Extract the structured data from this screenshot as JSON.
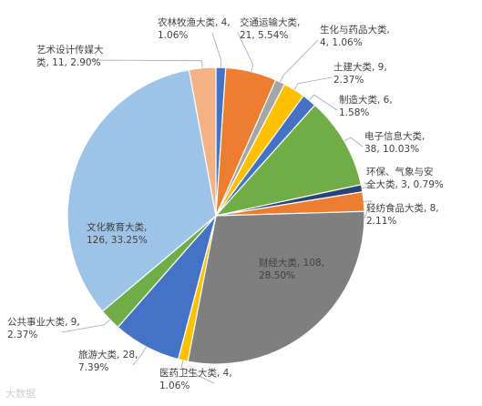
{
  "chart_data": {
    "type": "pie",
    "title": "",
    "slices": [
      {
        "name": "农林牧渔大类",
        "value": 4,
        "percent": "1.06%",
        "label_lines": [
          "农林牧渔大类, 4,",
          "1.06%"
        ],
        "color": "#4472c4"
      },
      {
        "name": "交通运输大类",
        "value": 21,
        "percent": "5.54%",
        "label_lines": [
          "交通运输大类,",
          "21, 5.54%"
        ],
        "color": "#ed7d31"
      },
      {
        "name": "生化与药品大类",
        "value": 4,
        "percent": "1.06%",
        "label_lines": [
          "生化与药品大类,",
          "4, 1.06%"
        ],
        "color": "#a5a5a5"
      },
      {
        "name": "土建大类",
        "value": 9,
        "percent": "2.37%",
        "label_lines": [
          "土建大类, 9,",
          "2.37%"
        ],
        "color": "#ffc000"
      },
      {
        "name": "制造大类",
        "value": 6,
        "percent": "1.58%",
        "label_lines": [
          "制造大类, 6,",
          "1.58%"
        ],
        "color": "#4472c4"
      },
      {
        "name": "电子信息大类",
        "value": 38,
        "percent": "10.03%",
        "label_lines": [
          "电子信息大类,",
          "38, 10.03%"
        ],
        "color": "#70ad47"
      },
      {
        "name": "环保、气象与安全大类",
        "value": 3,
        "percent": "0.79%",
        "label_lines": [
          "环保、气象与安",
          "全大类, 3, 0.79%"
        ],
        "color": "#264478"
      },
      {
        "name": "轻纺食品大类",
        "value": 8,
        "percent": "2.11%",
        "label_lines": [
          "轻纺食品大类, 8,",
          "2.11%"
        ],
        "color": "#ed7d31"
      },
      {
        "name": "财经大类",
        "value": 108,
        "percent": "28.50%",
        "label_lines": [
          "财经大类, 108,",
          "28.50%"
        ],
        "color": "#7f7f7f"
      },
      {
        "name": "医药卫生大类",
        "value": 4,
        "percent": "1.06%",
        "label_lines": [
          "医药卫生大类, 4,",
          "1.06%"
        ],
        "color": "#ffc000"
      },
      {
        "name": "旅游大类",
        "value": 28,
        "percent": "7.39%",
        "label_lines": [
          "旅游大类, 28,",
          "7.39%"
        ],
        "color": "#4472c4"
      },
      {
        "name": "公共事业大类",
        "value": 9,
        "percent": "2.37%",
        "label_lines": [
          "公共事业大类, 9,",
          "2.37%"
        ],
        "color": "#70ad47"
      },
      {
        "name": "文化教育大类",
        "value": 126,
        "percent": "33.25%",
        "label_lines": [
          "文化教育大类,",
          "126, 33.25%"
        ],
        "color": "#9dc3e6"
      },
      {
        "name": "艺术设计传媒大类",
        "value": 11,
        "percent": "2.90%",
        "label_lines": [
          "艺术设计传媒大",
          "类, 11, 2.90%"
        ],
        "color": "#f4b183"
      }
    ]
  },
  "watermark": "大数据"
}
